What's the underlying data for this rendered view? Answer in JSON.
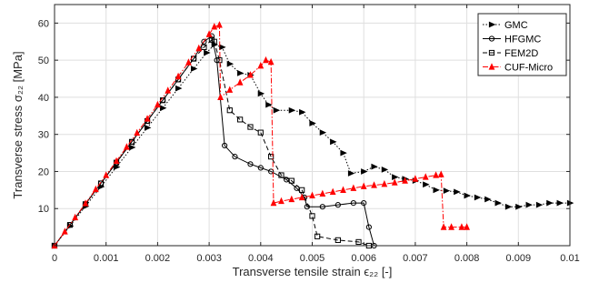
{
  "chart_data": {
    "type": "line",
    "title": "",
    "xlabel": "Transverse tensile strain ϵ₂₂ [-]",
    "ylabel": "Transverse stress σ₂₂ [MPa]",
    "xlim": [
      0,
      0.01
    ],
    "ylim": [
      0,
      65
    ],
    "xticks": [
      "0",
      "0.001",
      "0.002",
      "0.003",
      "0.004",
      "0.005",
      "0.006",
      "0.007",
      "0.008",
      "0.009",
      "0.01"
    ],
    "yticks": [
      "10",
      "20",
      "30",
      "40",
      "50",
      "60"
    ],
    "grid": true,
    "legend_position": "top-right",
    "series": [
      {
        "name": "GMC",
        "color": "#000000",
        "dash": "dotted",
        "marker": "triangle-right",
        "x": [
          0,
          0.0003,
          0.0006,
          0.0009,
          0.0012,
          0.0015,
          0.0018,
          0.0021,
          0.0024,
          0.0027,
          0.00295,
          0.0031,
          0.00325,
          0.0034,
          0.0036,
          0.0038,
          0.004,
          0.00415,
          0.0043,
          0.0046,
          0.0048,
          0.005,
          0.0052,
          0.0054,
          0.0056,
          0.00575,
          0.006,
          0.0062,
          0.0064,
          0.0066,
          0.0068,
          0.007,
          0.0072,
          0.0074,
          0.0076,
          0.0078,
          0.008,
          0.0082,
          0.0084,
          0.0086,
          0.0088,
          0.009,
          0.0092,
          0.0094,
          0.0096,
          0.0098,
          0.01
        ],
        "y": [
          0,
          5.3,
          10.6,
          15.9,
          21.2,
          26.5,
          31.8,
          37.1,
          42.4,
          47.7,
          52,
          54.2,
          53.5,
          49,
          46.5,
          46,
          41,
          38,
          36.5,
          36.5,
          36,
          33,
          30.5,
          28,
          25,
          19.5,
          20,
          21.3,
          20.5,
          18.5,
          18,
          17.5,
          16.5,
          15,
          14.8,
          14.5,
          13.5,
          13,
          12.5,
          11.5,
          10.5,
          10.5,
          11,
          11,
          11.5,
          11.5,
          11.5
        ]
      },
      {
        "name": "HFGMC",
        "color": "#000000",
        "dash": "solid",
        "marker": "circle",
        "x": [
          0,
          0.0003,
          0.0006,
          0.0009,
          0.0012,
          0.0015,
          0.0018,
          0.0021,
          0.0024,
          0.0027,
          0.0029,
          0.00305,
          0.00315,
          0.0033,
          0.0035,
          0.0038,
          0.004,
          0.0042,
          0.0045,
          0.0047,
          0.00485,
          0.0049,
          0.0052,
          0.0055,
          0.0058,
          0.006,
          0.0061,
          0.0062
        ],
        "y": [
          0,
          5.6,
          11.2,
          16.8,
          22.4,
          28,
          33.6,
          39.2,
          44.8,
          50.4,
          55,
          56.5,
          50,
          27,
          24,
          22,
          21,
          20,
          17.8,
          15.5,
          13,
          10.5,
          10.5,
          11,
          11.5,
          11.5,
          5,
          0
        ]
      },
      {
        "name": "FEM2D",
        "color": "#000000",
        "dash": "dashed",
        "marker": "square",
        "x": [
          0,
          0.0003,
          0.0006,
          0.0009,
          0.0012,
          0.0015,
          0.0018,
          0.0021,
          0.0024,
          0.0027,
          0.0029,
          0.00305,
          0.0031,
          0.0032,
          0.0034,
          0.0036,
          0.0038,
          0.004,
          0.0042,
          0.0044,
          0.0046,
          0.0048,
          0.005,
          0.0051,
          0.0055,
          0.0059,
          0.0061
        ],
        "y": [
          0,
          5.6,
          11.2,
          16.8,
          22.4,
          28,
          33.6,
          39.2,
          44.8,
          50.4,
          53.5,
          55.5,
          55,
          50,
          36.5,
          34,
          32,
          30.5,
          24,
          19,
          17.5,
          15,
          8,
          2.5,
          1.5,
          1,
          0
        ]
      },
      {
        "name": "CUF-Micro",
        "color": "#ff0000",
        "dash": "dashdot",
        "marker": "triangle-up",
        "x": [
          0,
          0.0002,
          0.0004,
          0.0006,
          0.0008,
          0.001,
          0.0012,
          0.0014,
          0.0016,
          0.0018,
          0.002,
          0.0022,
          0.0024,
          0.0026,
          0.0028,
          0.003,
          0.0031,
          0.0032,
          0.00322,
          0.0034,
          0.0036,
          0.0038,
          0.004,
          0.0041,
          0.0042,
          0.00425,
          0.0044,
          0.0046,
          0.0048,
          0.005,
          0.0052,
          0.0054,
          0.0056,
          0.0058,
          0.006,
          0.0062,
          0.0064,
          0.0066,
          0.0068,
          0.007,
          0.0072,
          0.0074,
          0.0075,
          0.00755,
          0.0077,
          0.0079,
          0.008
        ],
        "y": [
          0,
          3.8,
          7.6,
          11.4,
          15.2,
          19,
          22.8,
          26.6,
          30.4,
          34.2,
          38,
          41.8,
          45.6,
          49.4,
          53.2,
          57,
          59,
          59.5,
          40,
          42,
          44,
          46,
          48.5,
          50,
          49.5,
          11.5,
          12,
          12.5,
          13,
          13.5,
          14,
          14.5,
          15,
          15.5,
          16,
          16.3,
          16.6,
          17,
          17.5,
          18,
          18.5,
          19,
          19.2,
          5,
          5,
          5,
          5
        ]
      }
    ]
  }
}
